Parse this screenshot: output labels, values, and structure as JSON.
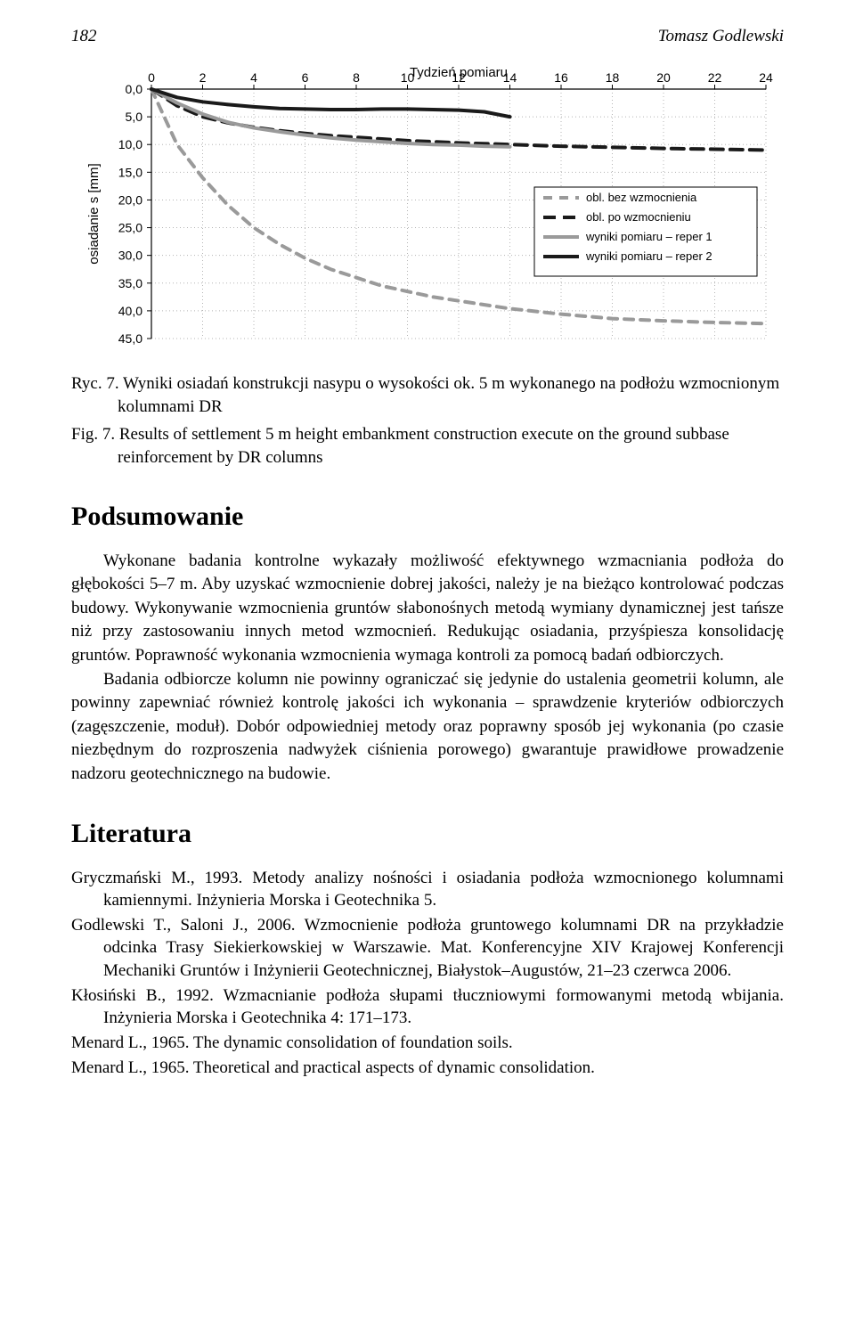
{
  "header": {
    "page_number": "182",
    "running_head": "Tomasz Godlewski"
  },
  "chart": {
    "type": "line",
    "title": "Tydzień pomiaru",
    "title_fontsize": 15,
    "x_ticks": [
      0,
      2,
      4,
      6,
      8,
      10,
      12,
      14,
      16,
      18,
      20,
      22,
      24
    ],
    "y_label": "osiadanie s [mm]",
    "y_label_fontsize": 15,
    "y_ticks": [
      "0,0",
      "5,0",
      "10,0",
      "15,0",
      "20,0",
      "25,0",
      "30,0",
      "35,0",
      "40,0",
      "45,0"
    ],
    "y_values": [
      0,
      5,
      10,
      15,
      20,
      25,
      30,
      35,
      40,
      45
    ],
    "xlim": [
      0,
      24
    ],
    "ylim": [
      0,
      45
    ],
    "background_color": "#ffffff",
    "grid_color": "#b5b5b5",
    "axis_color": "#000000",
    "legend": {
      "border_color": "#000000",
      "background": "#ffffff",
      "items": [
        {
          "label": "obl. bez wzmocnienia",
          "color": "#9a9a9a",
          "dash": "10,8",
          "width": 4
        },
        {
          "label": "obl. po wzmocnieniu",
          "color": "#1a1a1a",
          "dash": "14,8",
          "width": 4
        },
        {
          "label": "wyniki pomiaru – reper 1",
          "color": "#9a9a9a",
          "dash": "",
          "width": 4
        },
        {
          "label": "wyniki pomiaru – reper 2",
          "color": "#1a1a1a",
          "dash": "",
          "width": 4
        }
      ]
    },
    "series": [
      {
        "name": "obl_bez_wzmocnienia",
        "color": "#9a9a9a",
        "dash": "10,8",
        "width": 4,
        "points_x": [
          0,
          1,
          2,
          3,
          4,
          5,
          6,
          7,
          8,
          9,
          10,
          11,
          12,
          14,
          16,
          18,
          20,
          22,
          24
        ],
        "points_y": [
          0,
          10,
          16,
          21,
          25,
          28,
          30.5,
          32.5,
          34,
          35.5,
          36.5,
          37.5,
          38.2,
          39.6,
          40.6,
          41.4,
          41.8,
          42.1,
          42.3
        ]
      },
      {
        "name": "obl_po_wzmocnieniu",
        "color": "#1a1a1a",
        "dash": "14,8",
        "width": 4,
        "points_x": [
          0,
          1,
          2,
          3,
          4,
          5,
          6,
          7,
          8,
          9,
          10,
          11,
          12,
          14,
          16,
          18,
          20,
          22,
          24
        ],
        "points_y": [
          0,
          3,
          5,
          6.1,
          6.9,
          7.5,
          8.0,
          8.4,
          8.7,
          9.0,
          9.3,
          9.5,
          9.7,
          10.0,
          10.3,
          10.5,
          10.7,
          10.85,
          11.0
        ]
      },
      {
        "name": "reper1",
        "color": "#9a9a9a",
        "dash": "",
        "width": 4,
        "points_x": [
          0,
          1,
          2,
          3,
          4,
          5,
          6,
          7,
          8,
          9,
          10,
          11,
          12,
          13,
          14
        ],
        "points_y": [
          0,
          2.5,
          4.5,
          6,
          7,
          7.7,
          8.3,
          8.8,
          9.2,
          9.5,
          9.8,
          10.0,
          10.1,
          10.3,
          10.4
        ]
      },
      {
        "name": "reper2",
        "color": "#1a1a1a",
        "dash": "",
        "width": 4,
        "points_x": [
          0,
          1,
          2,
          3,
          4,
          5,
          6,
          7,
          8,
          9,
          10,
          11,
          12,
          13,
          14
        ],
        "points_y": [
          0,
          1.5,
          2.3,
          2.8,
          3.2,
          3.5,
          3.6,
          3.7,
          3.7,
          3.6,
          3.6,
          3.7,
          3.8,
          4.1,
          5.0
        ]
      }
    ]
  },
  "caption_pl": "Ryc. 7. Wyniki osiadań konstrukcji nasypu o wysokości ok. 5 m wykonanego na podłożu wzmocnionym kolumnami DR",
  "caption_en": "Fig. 7. Results of settlement 5 m height embankment construction execute on the ground subbase reinforcement by DR columns",
  "section1_title": "Podsumowanie",
  "para1": "Wykonane badania kontrolne wykazały możliwość efektywnego wzmacniania podłoża do głębokości 5–7 m. Aby uzyskać wzmocnienie dobrej jakości, należy je na bieżąco kontrolować podczas budowy. Wykonywanie wzmocnienia gruntów słabonośnych metodą wymiany dynamicznej jest tańsze niż przy zastosowaniu innych metod wzmocnień. Redukując osiadania, przyśpiesza konsolidację gruntów. Poprawność wykonania wzmocnienia wymaga kontroli za pomocą badań odbiorczych.",
  "para2": "Badania odbiorcze kolumn nie powinny ograniczać się jedynie do ustalenia geometrii kolumn, ale powinny zapewniać również kontrolę jakości ich wykonania – sprawdzenie kryteriów odbiorczych (zagęszczenie, moduł). Dobór odpowiedniej metody oraz poprawny sposób jej wykonania (po czasie niezbędnym do rozproszenia nadwyżek ciśnienia porowego) gwarantuje prawidłowe prowadzenie nadzoru geotechnicznego na budowie.",
  "section2_title": "Literatura",
  "refs": [
    "Gryczmański M., 1993. Metody analizy nośności i osiadania podłoża wzmocnionego kolumnami kamiennymi. Inżynieria Morska i Geotechnika 5.",
    "Godlewski T., Saloni J., 2006. Wzmocnienie podłoża gruntowego kolumnami DR na przykładzie odcinka Trasy Siekierkowskiej w Warszawie. Mat. Konferencyjne XIV Krajowej Konferencji Mechaniki Gruntów i Inżynierii Geotechnicznej, Białystok–Augustów, 21–23 czerwca 2006.",
    "Kłosiński B., 1992. Wzmacnianie podłoża słupami tłuczniowymi formowanymi metodą wbijania. Inżynieria Morska i Geotechnika 4: 171–173.",
    "Menard L., 1965. The dynamic consolidation of foundation soils.",
    "Menard L., 1965. Theoretical and practical aspects of dynamic consolidation."
  ]
}
